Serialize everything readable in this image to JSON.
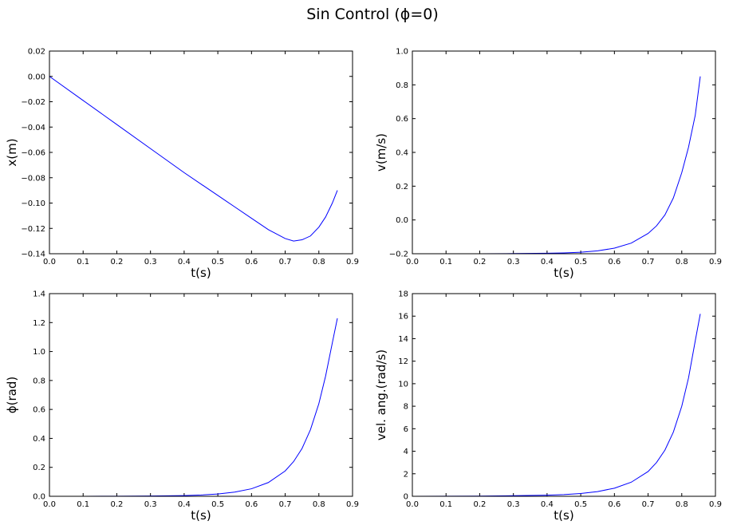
{
  "figure_title": "Sin Control (ϕ=0)",
  "colors": {
    "line": "#0000ff",
    "axes": "#000000",
    "background": "#ffffff"
  },
  "chart_data": [
    {
      "type": "line",
      "xlabel": "t(s)",
      "ylabel": "x(m)",
      "xlim": [
        0.0,
        0.9
      ],
      "ylim": [
        -0.14,
        0.02
      ],
      "xticks": [
        0.0,
        0.1,
        0.2,
        0.3,
        0.4,
        0.5,
        0.6,
        0.7,
        0.8,
        0.9
      ],
      "xtick_labels": [
        "0.0",
        "0.1",
        "0.2",
        "0.3",
        "0.4",
        "0.5",
        "0.6",
        "0.7",
        "0.8",
        "0.9"
      ],
      "yticks": [
        -0.14,
        -0.12,
        -0.1,
        -0.08,
        -0.06,
        -0.04,
        -0.02,
        0.0,
        0.02
      ],
      "ytick_labels": [
        "−0.14",
        "−0.12",
        "−0.10",
        "−0.08",
        "−0.06",
        "−0.04",
        "−0.02",
        "0.00",
        "0.02"
      ],
      "grid": false,
      "series": [
        {
          "x": [
            0.0,
            0.1,
            0.2,
            0.3,
            0.4,
            0.5,
            0.55,
            0.6,
            0.65,
            0.7,
            0.725,
            0.75,
            0.775,
            0.8,
            0.82,
            0.84,
            0.855
          ],
          "y": [
            0.0,
            -0.019,
            -0.038,
            -0.057,
            -0.076,
            -0.094,
            -0.103,
            -0.112,
            -0.121,
            -0.128,
            -0.13,
            -0.129,
            -0.126,
            -0.119,
            -0.111,
            -0.1,
            -0.09
          ]
        }
      ]
    },
    {
      "type": "line",
      "xlabel": "t(s)",
      "ylabel": "v(m/s)",
      "xlim": [
        0.0,
        0.9
      ],
      "ylim": [
        -0.2,
        1.0
      ],
      "xticks": [
        0.0,
        0.1,
        0.2,
        0.3,
        0.4,
        0.5,
        0.6,
        0.7,
        0.8,
        0.9
      ],
      "xtick_labels": [
        "0.0",
        "0.1",
        "0.2",
        "0.3",
        "0.4",
        "0.5",
        "0.6",
        "0.7",
        "0.8",
        "0.9"
      ],
      "yticks": [
        -0.2,
        0.0,
        0.2,
        0.4,
        0.6,
        0.8,
        1.0
      ],
      "ytick_labels": [
        "−0.2",
        "0.0",
        "0.2",
        "0.4",
        "0.6",
        "0.8",
        "1.0"
      ],
      "grid": false,
      "series": [
        {
          "x": [
            0.0,
            0.1,
            0.2,
            0.3,
            0.4,
            0.45,
            0.5,
            0.55,
            0.6,
            0.65,
            0.7,
            0.725,
            0.75,
            0.775,
            0.8,
            0.82,
            0.84,
            0.855
          ],
          "y": [
            -0.2,
            -0.2,
            -0.2,
            -0.199,
            -0.197,
            -0.195,
            -0.191,
            -0.183,
            -0.167,
            -0.137,
            -0.08,
            -0.035,
            0.03,
            0.13,
            0.28,
            0.43,
            0.62,
            0.85
          ]
        }
      ]
    },
    {
      "type": "line",
      "xlabel": "t(s)",
      "ylabel": "ϕ(rad)",
      "xlim": [
        0.0,
        0.9
      ],
      "ylim": [
        0.0,
        1.4
      ],
      "xticks": [
        0.0,
        0.1,
        0.2,
        0.3,
        0.4,
        0.5,
        0.6,
        0.7,
        0.8,
        0.9
      ],
      "xtick_labels": [
        "0.0",
        "0.1",
        "0.2",
        "0.3",
        "0.4",
        "0.5",
        "0.6",
        "0.7",
        "0.8",
        "0.9"
      ],
      "yticks": [
        0.0,
        0.2,
        0.4,
        0.6,
        0.8,
        1.0,
        1.2,
        1.4
      ],
      "ytick_labels": [
        "0.0",
        "0.2",
        "0.4",
        "0.6",
        "0.8",
        "1.0",
        "1.2",
        "1.4"
      ],
      "grid": false,
      "series": [
        {
          "x": [
            0.0,
            0.1,
            0.2,
            0.3,
            0.4,
            0.45,
            0.5,
            0.55,
            0.6,
            0.65,
            0.7,
            0.725,
            0.75,
            0.775,
            0.8,
            0.82,
            0.84,
            0.855
          ],
          "y": [
            0.0,
            0.0,
            0.001,
            0.002,
            0.005,
            0.009,
            0.016,
            0.029,
            0.052,
            0.095,
            0.175,
            0.24,
            0.33,
            0.46,
            0.64,
            0.83,
            1.06,
            1.23
          ]
        }
      ]
    },
    {
      "type": "line",
      "xlabel": "t(s)",
      "ylabel": "vel. ang.(rad/s)",
      "xlim": [
        0.0,
        0.9
      ],
      "ylim": [
        0,
        18
      ],
      "xticks": [
        0.0,
        0.1,
        0.2,
        0.3,
        0.4,
        0.5,
        0.6,
        0.7,
        0.8,
        0.9
      ],
      "xtick_labels": [
        "0.0",
        "0.1",
        "0.2",
        "0.3",
        "0.4",
        "0.5",
        "0.6",
        "0.7",
        "0.8",
        "0.9"
      ],
      "yticks": [
        0,
        2,
        4,
        6,
        8,
        10,
        12,
        14,
        16,
        18
      ],
      "ytick_labels": [
        "0",
        "2",
        "4",
        "6",
        "8",
        "10",
        "12",
        "14",
        "16",
        "18"
      ],
      "grid": false,
      "series": [
        {
          "x": [
            0.0,
            0.1,
            0.2,
            0.3,
            0.4,
            0.45,
            0.5,
            0.55,
            0.6,
            0.65,
            0.7,
            0.725,
            0.75,
            0.775,
            0.8,
            0.82,
            0.84,
            0.855
          ],
          "y": [
            0.0,
            0.01,
            0.02,
            0.05,
            0.1,
            0.15,
            0.25,
            0.42,
            0.72,
            1.25,
            2.2,
            3.0,
            4.1,
            5.7,
            8.0,
            10.5,
            13.8,
            16.2
          ]
        }
      ]
    }
  ]
}
